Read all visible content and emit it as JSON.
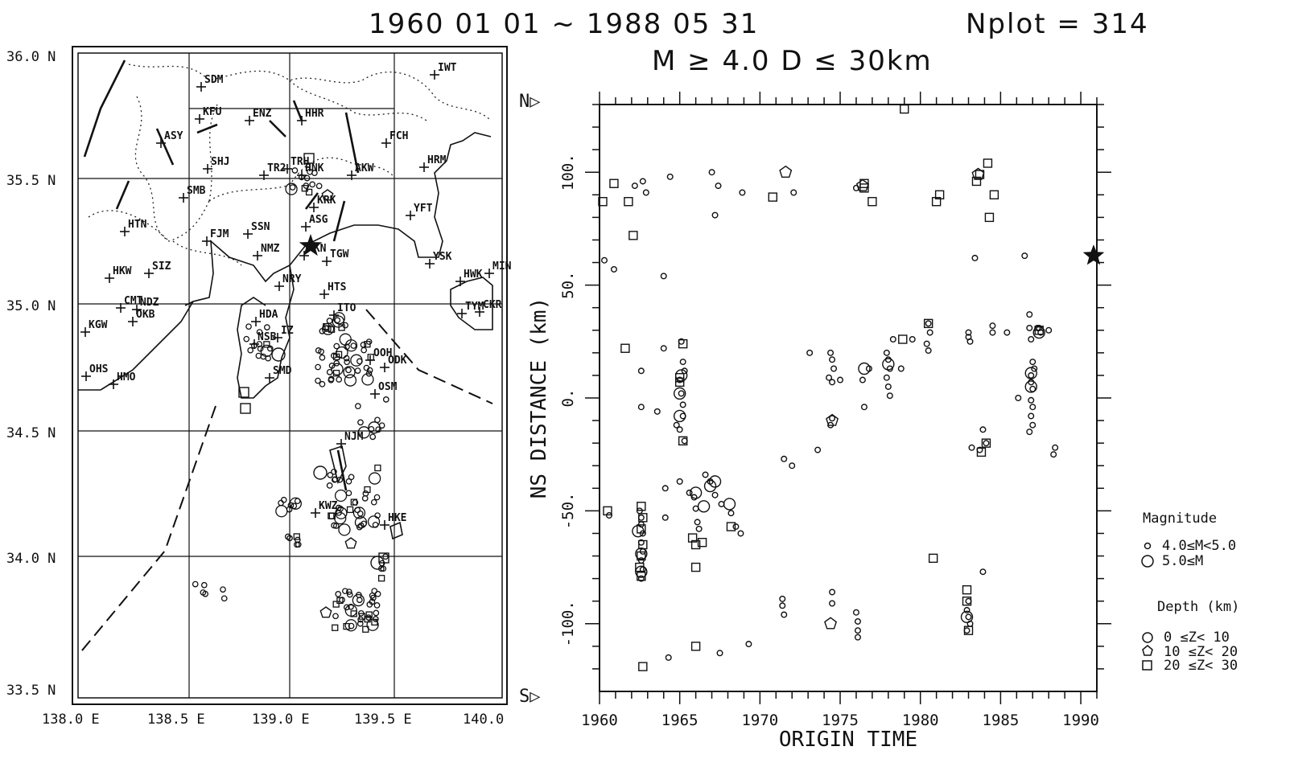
{
  "header": {
    "period": "1960 01 01 ~ 1988 05 31",
    "nplot": "Nplot = 314",
    "condition": "M ≥ 4.0  D ≤ 30km"
  },
  "map": {
    "lat_labels": [
      "36.0 N",
      "35.5 N",
      "35.0 N",
      "34.5 N",
      "34.0 N",
      "33.5 N"
    ],
    "lon_labels": [
      "138.0 E",
      "138.5 E",
      "139.0 E",
      "139.5 E",
      "140.0"
    ],
    "stations": [
      "IWT",
      "SDM",
      "ENZ",
      "HHR",
      "KFU",
      "FCH",
      "ASY",
      "SHJ",
      "TRH",
      "TR2",
      "HNK",
      "AKW",
      "HRM",
      "SMB",
      "KRK",
      "YFT",
      "ASG",
      "SSN",
      "HTN",
      "FJM",
      "NMZ",
      "HKN",
      "TGW",
      "YSK",
      "HWK",
      "MIN",
      "HKW",
      "SIZ",
      "NRY",
      "HTS",
      "CMT",
      "NDZ",
      "OKB",
      "TYM",
      "CKR",
      "KGW",
      "HDA",
      "IZ",
      "ITO",
      "NSB",
      "OHS",
      "HMO",
      "SMD",
      "OOH",
      "ODK",
      "OSM",
      "NJM",
      "KWZ",
      "HKE"
    ],
    "north_label": "N▷",
    "south_label": "S▷"
  },
  "legend": {
    "magnitude_title": "Magnitude",
    "mag_small": "4.0≤M<5.0",
    "mag_large": "5.0≤M",
    "depth_title": "Depth  (km)",
    "depth_1": "0  ≤Z<  10",
    "depth_2": "10  ≤Z<  20",
    "depth_3": "20  ≤Z<  30"
  },
  "chart_data": {
    "type": "scatter",
    "title": "1960 01 01 ~ 1988 05 31",
    "xlabel": "ORIGIN TIME",
    "ylabel": "NS DISTANCE (km)",
    "xlim": [
      1960,
      1991
    ],
    "ylim": [
      -130,
      130
    ],
    "x_ticks": [
      1960,
      1965,
      1970,
      1975,
      1980,
      1985,
      1990
    ],
    "y_ticks": [
      100,
      50,
      0,
      -50,
      -100
    ],
    "y_tick_labels": [
      "100.",
      "50.",
      "0.",
      "-50.",
      "-100."
    ],
    "star": {
      "x": 1990.8,
      "y": 63
    },
    "series": [
      {
        "name": "0 ≤Z< 10",
        "marker": "circle",
        "points": [
          [
            1960.3,
            61
          ],
          [
            1960.9,
            57
          ],
          [
            1962.2,
            94
          ],
          [
            1962.7,
            96
          ],
          [
            1962.9,
            91
          ],
          [
            1964.4,
            98
          ],
          [
            1967.0,
            100
          ],
          [
            1967.2,
            81
          ],
          [
            1967.4,
            94
          ],
          [
            1968.9,
            91
          ],
          [
            1972.1,
            91
          ],
          [
            1976.0,
            93
          ],
          [
            1964.0,
            54
          ],
          [
            1964.0,
            22
          ],
          [
            1965.1,
            25
          ],
          [
            1965.2,
            16
          ],
          [
            1965.3,
            12
          ],
          [
            1965.0,
            8
          ],
          [
            1965.1,
            2
          ],
          [
            1965.2,
            -3
          ],
          [
            1965.2,
            -8
          ],
          [
            1965.0,
            -14
          ],
          [
            1965.3,
            -19
          ],
          [
            1962.6,
            12
          ],
          [
            1962.6,
            -4
          ],
          [
            1963.6,
            -6
          ],
          [
            1964.8,
            -12
          ],
          [
            1960.6,
            -52
          ],
          [
            1962.5,
            -50
          ],
          [
            1962.6,
            -53
          ],
          [
            1962.6,
            -56
          ],
          [
            1962.7,
            -60
          ],
          [
            1962.6,
            -64
          ],
          [
            1962.7,
            -68
          ],
          [
            1962.6,
            -72
          ],
          [
            1962.7,
            -76
          ],
          [
            1962.6,
            -80
          ],
          [
            1964.1,
            -40
          ],
          [
            1965.0,
            -37
          ],
          [
            1965.6,
            -42
          ],
          [
            1965.9,
            -44
          ],
          [
            1966.0,
            -49
          ],
          [
            1966.1,
            -55
          ],
          [
            1966.2,
            -58
          ],
          [
            1966.6,
            -34
          ],
          [
            1966.9,
            -37
          ],
          [
            1967.2,
            -43
          ],
          [
            1967.6,
            -47
          ],
          [
            1968.2,
            -51
          ],
          [
            1968.5,
            -57
          ],
          [
            1968.8,
            -60
          ],
          [
            1964.1,
            -53
          ],
          [
            1971.5,
            -27
          ],
          [
            1972.0,
            -30
          ],
          [
            1973.1,
            20
          ],
          [
            1974.4,
            20
          ],
          [
            1974.5,
            17
          ],
          [
            1974.6,
            13
          ],
          [
            1974.3,
            9
          ],
          [
            1974.5,
            7
          ],
          [
            1975.0,
            8
          ],
          [
            1976.4,
            8
          ],
          [
            1976.8,
            13
          ],
          [
            1976.5,
            -4
          ],
          [
            1974.5,
            -9
          ],
          [
            1974.4,
            -12
          ],
          [
            1977.9,
            20
          ],
          [
            1978.0,
            17
          ],
          [
            1978.1,
            13
          ],
          [
            1977.9,
            9
          ],
          [
            1978.0,
            5
          ],
          [
            1978.1,
            1
          ],
          [
            1978.8,
            13
          ],
          [
            1978.3,
            26
          ],
          [
            1979.5,
            26
          ],
          [
            1980.5,
            33
          ],
          [
            1980.6,
            29
          ],
          [
            1980.4,
            24
          ],
          [
            1980.5,
            21
          ],
          [
            1983.0,
            27
          ],
          [
            1983.1,
            25
          ],
          [
            1983.0,
            29
          ],
          [
            1984.5,
            32
          ],
          [
            1984.5,
            29
          ],
          [
            1983.4,
            62
          ],
          [
            1983.9,
            -14
          ],
          [
            1984.1,
            -20
          ],
          [
            1983.7,
            -23
          ],
          [
            1983.2,
            -22
          ],
          [
            1973.6,
            -23
          ],
          [
            1971.4,
            -89
          ],
          [
            1971.4,
            -92
          ],
          [
            1971.5,
            -96
          ],
          [
            1974.5,
            -86
          ],
          [
            1974.5,
            -91
          ],
          [
            1976.0,
            -95
          ],
          [
            1976.1,
            -99
          ],
          [
            1976.1,
            -103
          ],
          [
            1976.1,
            -106
          ],
          [
            1967.5,
            -113
          ],
          [
            1969.3,
            -109
          ],
          [
            1964.3,
            -115
          ],
          [
            1982.9,
            -94
          ],
          [
            1983.0,
            -97
          ],
          [
            1983.1,
            -100
          ],
          [
            1982.9,
            -103
          ],
          [
            1983.0,
            -90
          ],
          [
            1983.9,
            -77
          ],
          [
            1986.5,
            63
          ],
          [
            1986.8,
            37
          ],
          [
            1986.8,
            31
          ],
          [
            1986.9,
            26
          ],
          [
            1987.0,
            16
          ],
          [
            1987.1,
            13
          ],
          [
            1986.9,
            10
          ],
          [
            1986.9,
            7
          ],
          [
            1987.0,
            4
          ],
          [
            1986.9,
            -1
          ],
          [
            1987.0,
            -4
          ],
          [
            1986.9,
            -8
          ],
          [
            1987.0,
            -12
          ],
          [
            1986.8,
            -15
          ],
          [
            1986.1,
            0
          ],
          [
            1987.3,
            31
          ],
          [
            1987.5,
            29
          ],
          [
            1987.4,
            31
          ],
          [
            1988.0,
            30
          ],
          [
            1988.4,
            -22
          ],
          [
            1988.3,
            -25
          ],
          [
            1985.4,
            29
          ]
        ]
      },
      {
        "name": "5.0≤M",
        "marker": "circle-large",
        "points": [
          [
            1962.4,
            -59
          ],
          [
            1962.6,
            -69
          ],
          [
            1962.6,
            -77
          ],
          [
            1965.0,
            -8
          ],
          [
            1965.0,
            2
          ],
          [
            1965.1,
            10
          ],
          [
            1966.0,
            -42
          ],
          [
            1966.5,
            -48
          ],
          [
            1966.9,
            -39
          ],
          [
            1967.2,
            -37
          ],
          [
            1968.1,
            -47
          ],
          [
            1978.0,
            15
          ],
          [
            1976.5,
            13
          ],
          [
            1986.9,
            5
          ],
          [
            1986.9,
            11
          ],
          [
            1987.4,
            29
          ],
          [
            1982.9,
            -97
          ]
        ]
      },
      {
        "name": "10 ≤Z< 20",
        "marker": "pentagon",
        "points": [
          [
            1971.6,
            100
          ],
          [
            1974.4,
            -100
          ],
          [
            1974.5,
            -10
          ],
          [
            1976.4,
            94
          ],
          [
            1983.6,
            99
          ]
        ]
      },
      {
        "name": "20 ≤Z< 30",
        "marker": "square",
        "points": [
          [
            1960.2,
            87
          ],
          [
            1961.8,
            87
          ],
          [
            1960.9,
            95
          ],
          [
            1962.1,
            72
          ],
          [
            1961.6,
            22
          ],
          [
            1965.2,
            24
          ],
          [
            1965.2,
            -19
          ],
          [
            1962.6,
            -48
          ],
          [
            1962.7,
            -53
          ],
          [
            1962.6,
            -58
          ],
          [
            1962.7,
            -65
          ],
          [
            1962.6,
            -70
          ],
          [
            1962.5,
            -75
          ],
          [
            1962.6,
            -79
          ],
          [
            1960.5,
            -50
          ],
          [
            1965.8,
            -62
          ],
          [
            1966.0,
            -65
          ],
          [
            1966.4,
            -64
          ],
          [
            1966.0,
            -75
          ],
          [
            1968.2,
            -57
          ],
          [
            1966.0,
            -110
          ],
          [
            1962.7,
            -119
          ],
          [
            1965.0,
            9
          ],
          [
            1965.0,
            7
          ],
          [
            1970.8,
            89
          ],
          [
            1976.5,
            93
          ],
          [
            1976.5,
            95
          ],
          [
            1977.0,
            87
          ],
          [
            1979.0,
            128
          ],
          [
            1978.9,
            26
          ],
          [
            1980.8,
            -71
          ],
          [
            1980.5,
            33
          ],
          [
            1981.2,
            90
          ],
          [
            1981.0,
            87
          ],
          [
            1983.5,
            96
          ],
          [
            1983.7,
            99
          ],
          [
            1984.2,
            104
          ],
          [
            1984.3,
            80
          ],
          [
            1984.6,
            90
          ],
          [
            1983.8,
            -24
          ],
          [
            1984.1,
            -20
          ],
          [
            1982.9,
            -85
          ],
          [
            1982.9,
            -90
          ],
          [
            1983.0,
            -103
          ],
          [
            1987.4,
            30
          ]
        ]
      }
    ]
  }
}
